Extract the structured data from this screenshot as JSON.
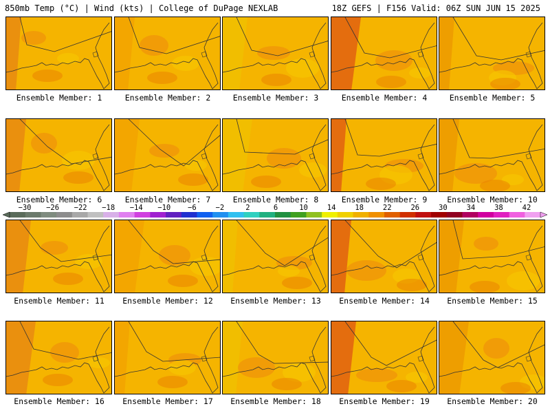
{
  "header": {
    "title_left": "850mb Temp (°C) | Wind (kts) | College of DuPage NEXLAB",
    "title_right": "18Z GEFS | F156 Valid: 06Z SUN JUN 15 2025"
  },
  "colorbar": {
    "tick_labels": [
      "−30",
      "−26",
      "−22",
      "−18",
      "−14",
      "−10",
      "−6",
      "−2",
      "2",
      "6",
      "10",
      "14",
      "18",
      "22",
      "26",
      "30",
      "34",
      "38",
      "42"
    ],
    "colors": [
      "#5a6b5a",
      "#6b7a6b",
      "#7f8c7f",
      "#8d8d8d",
      "#a8a8a8",
      "#c0c0c0",
      "#d8b0e8",
      "#e080f0",
      "#d040e0",
      "#a020d0",
      "#6020c0",
      "#2030d0",
      "#1060f0",
      "#2090f0",
      "#30c0f0",
      "#30d0c0",
      "#20b080",
      "#209040",
      "#40a020",
      "#90c020",
      "#f0f000",
      "#f0d000",
      "#f0b000",
      "#f09000",
      "#e06000",
      "#d03000",
      "#c01010",
      "#a00000",
      "#900020",
      "#b00060",
      "#d000a0",
      "#e020c0",
      "#f060e0",
      "#f0a0f0"
    ]
  },
  "members": [
    {
      "label": "Ensemble Member: 1"
    },
    {
      "label": "Ensemble Member: 2"
    },
    {
      "label": "Ensemble Member: 3"
    },
    {
      "label": "Ensemble Member: 4"
    },
    {
      "label": "Ensemble Member: 5"
    },
    {
      "label": "Ensemble Member: 6"
    },
    {
      "label": "Ensemble Member: 7"
    },
    {
      "label": "Ensemble Member: 8"
    },
    {
      "label": "Ensemble Member: 9"
    },
    {
      "label": "Ensemble Member: 10"
    },
    {
      "label": "Ensemble Member: 11"
    },
    {
      "label": "Ensemble Member: 12"
    },
    {
      "label": "Ensemble Member: 13"
    },
    {
      "label": "Ensemble Member: 14"
    },
    {
      "label": "Ensemble Member: 15"
    },
    {
      "label": "Ensemble Member: 16"
    },
    {
      "label": "Ensemble Member: 17"
    },
    {
      "label": "Ensemble Member: 18"
    },
    {
      "label": "Ensemble Member: 19"
    },
    {
      "label": "Ensemble Member: 20"
    }
  ]
}
